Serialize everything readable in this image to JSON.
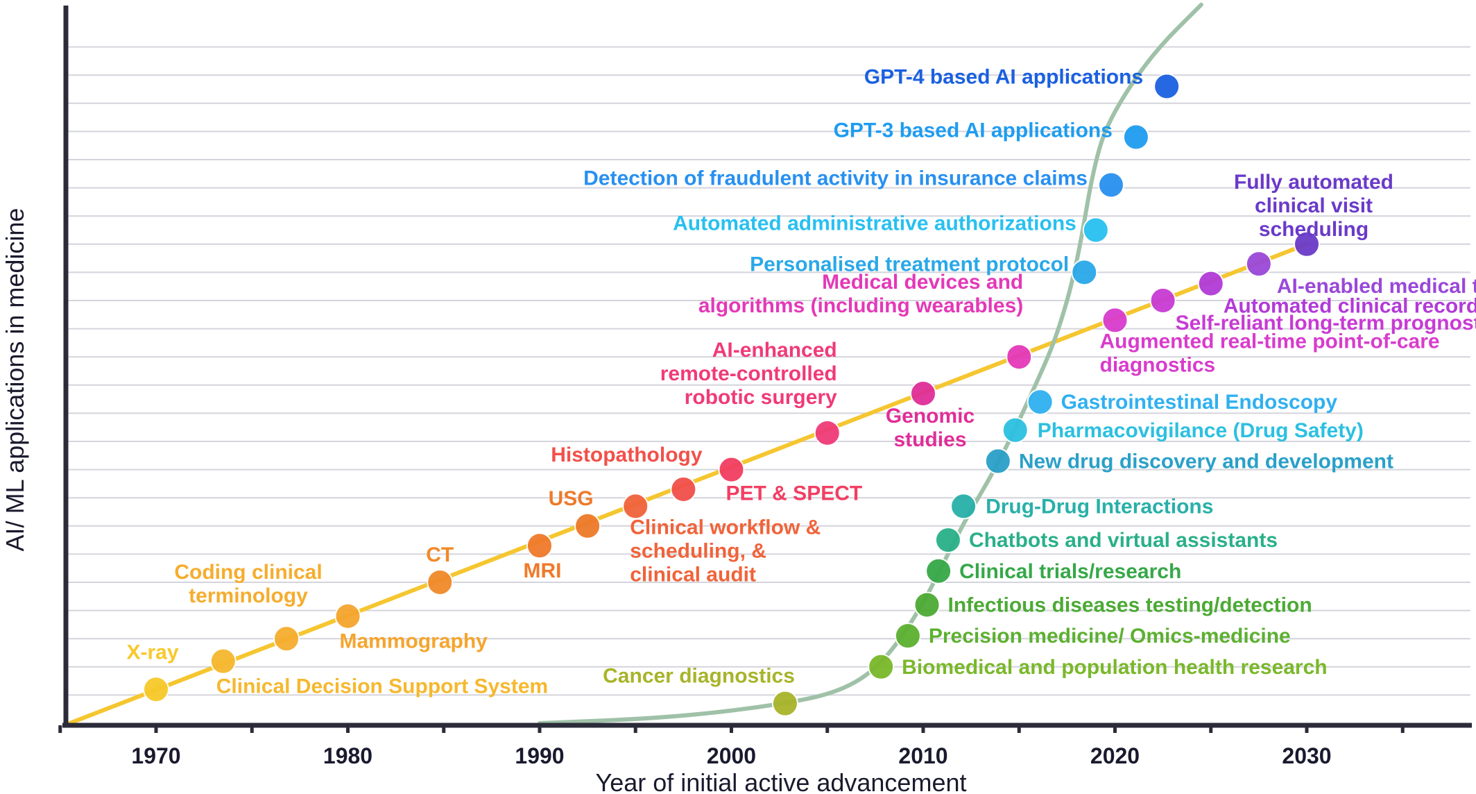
{
  "chart_data": {
    "type": "scatter",
    "title": "",
    "xlabel": "Year of initial active advancement",
    "ylabel": "AI/ ML applications in medicine",
    "xlim": [
      1965,
      2038
    ],
    "ylim": [
      0,
      24
    ],
    "x_ticks": [
      1970,
      1980,
      1990,
      2000,
      2010,
      2020,
      2030
    ],
    "grid": "horizontal",
    "legend": "none",
    "series": [
      {
        "line_color": "#f5c630",
        "trend_line": {
          "x_start": 1965.5,
          "x_end": 2030,
          "y_start": 0,
          "y_end": 17.0
        },
        "points": [
          {
            "x": 1970,
            "y": 1.2,
            "label": "X-ray",
            "color": "#f7c92a"
          },
          {
            "x": 1973.5,
            "y": 2.2,
            "label": "Clinical Decision Support System",
            "color": "#f5b82e"
          },
          {
            "x": 1976.8,
            "y": 3.0,
            "label": "Coding clinical terminology",
            "color": "#f5ad2e"
          },
          {
            "x": 1980,
            "y": 3.8,
            "label": "Mammography",
            "color": "#f5a52e"
          },
          {
            "x": 1984.8,
            "y": 5.0,
            "label": "CT",
            "color": "#f08a2a"
          },
          {
            "x": 1990,
            "y": 6.3,
            "label": "MRI",
            "color": "#f07a2a"
          },
          {
            "x": 1992.5,
            "y": 7.0,
            "label": "USG",
            "color": "#ee7a2a"
          },
          {
            "x": 1995,
            "y": 7.7,
            "label": "Clinical workflow & scheduling, & clinical audit",
            "color": "#f0633a"
          },
          {
            "x": 1997.5,
            "y": 8.3,
            "label": "Histopathology",
            "color": "#f2504a"
          },
          {
            "x": 2000,
            "y": 9.0,
            "label": "PET & SPECT",
            "color": "#f23e62"
          },
          {
            "x": 2005,
            "y": 10.3,
            "label": "AI-enhanced remote-controlled robotic surgery",
            "color": "#f03a78"
          },
          {
            "x": 2010,
            "y": 11.7,
            "label": "Genomic studies",
            "color": "#e02e98"
          },
          {
            "x": 2015,
            "y": 13.0,
            "label": "Medical devices and algorithms (including wearables)",
            "color": "#e438b8"
          },
          {
            "x": 2020,
            "y": 14.3,
            "label": "Augmented real-time point-of-care diagnostics",
            "color": "#d83ccc"
          },
          {
            "x": 2022.5,
            "y": 15.0,
            "label": "Self-reliant long-term prognostics",
            "color": "#c83ad4"
          },
          {
            "x": 2025,
            "y": 15.6,
            "label": "Automated clinical records",
            "color": "#b23ad8"
          },
          {
            "x": 2027.5,
            "y": 16.3,
            "label": "AI-enabled medical teacher",
            "color": "#9a48d8"
          },
          {
            "x": 2030,
            "y": 17.0,
            "label": "Fully automated clinical visit scheduling",
            "color": "#6a3ac8"
          }
        ]
      },
      {
        "line_color": "#9fc1a8",
        "trend_curve": [
          [
            1990,
            0
          ],
          [
            1997,
            0.2
          ],
          [
            2003,
            0.7
          ],
          [
            2006,
            1.2
          ],
          [
            2008,
            2.2
          ],
          [
            2010,
            4.2
          ],
          [
            2012,
            7.0
          ],
          [
            2014,
            9.3
          ],
          [
            2016,
            12.2
          ],
          [
            2017,
            13.8
          ],
          [
            2018,
            16.2
          ],
          [
            2019,
            20.2
          ],
          [
            2020,
            21.8
          ],
          [
            2022,
            23.8
          ],
          [
            2024.5,
            25.5
          ]
        ],
        "points": [
          {
            "x": 2002.8,
            "y": 0.7,
            "label": "Cancer diagnostics",
            "color": "#a8b42a"
          },
          {
            "x": 2007.8,
            "y": 2.0,
            "label": "Biomedical and population health research",
            "color": "#7ab82a"
          },
          {
            "x": 2009.2,
            "y": 3.1,
            "label": "Precision medicine/ Omics-medicine",
            "color": "#5cb030"
          },
          {
            "x": 2010.2,
            "y": 4.2,
            "label": "Infectious diseases testing/detection",
            "color": "#4caa34"
          },
          {
            "x": 2010.8,
            "y": 5.4,
            "label": "Clinical trials/research",
            "color": "#36a848"
          },
          {
            "x": 2011.3,
            "y": 6.5,
            "label": "Chatbots and virtual assistants",
            "color": "#2ab088"
          },
          {
            "x": 2012.1,
            "y": 7.7,
            "label": "Drug-Drug Interactions",
            "color": "#28b0a8"
          },
          {
            "x": 2013.9,
            "y": 9.3,
            "label": "New drug discovery and development",
            "color": "#2aa0c8"
          },
          {
            "x": 2014.8,
            "y": 10.4,
            "label": "Pharmacovigilance (Drug Safety)",
            "color": "#2cc0e0"
          },
          {
            "x": 2016.1,
            "y": 11.4,
            "label": "Gastrointestinal Endoscopy",
            "color": "#30b0f0"
          },
          {
            "x": 2018.4,
            "y": 16.0,
            "label": "Personalised treatment protocol",
            "color": "#2aa8e8"
          },
          {
            "x": 2019,
            "y": 17.5,
            "label": "Automated administrative authorizations",
            "color": "#28c0f0"
          },
          {
            "x": 2019.8,
            "y": 19.1,
            "label": "Detection of fraudulent activity in insurance claims",
            "color": "#2890f0"
          },
          {
            "x": 2021.1,
            "y": 20.8,
            "label": "GPT-3 based AI applications",
            "color": "#1e9cf0"
          },
          {
            "x": 2022.7,
            "y": 22.6,
            "label": "GPT-4 based AI applications",
            "color": "#1a60e0"
          }
        ]
      }
    ]
  }
}
